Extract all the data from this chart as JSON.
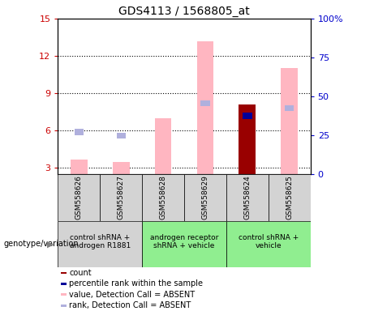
{
  "title": "GDS4113 / 1568805_at",
  "samples": [
    "GSM558626",
    "GSM558627",
    "GSM558628",
    "GSM558629",
    "GSM558624",
    "GSM558625"
  ],
  "ylim_left": [
    2.5,
    15
  ],
  "ylim_right": [
    0,
    100
  ],
  "yticks_left": [
    3,
    6,
    9,
    12,
    15
  ],
  "yticks_right": [
    0,
    25,
    50,
    75,
    100
  ],
  "ytick_labels_left": [
    "3",
    "6",
    "9",
    "12",
    "15"
  ],
  "ytick_labels_right": [
    "0",
    "25",
    "50",
    "75",
    "100%"
  ],
  "bars": {
    "GSM558626": {
      "pink_value": 3.7,
      "blue_rank": 5.9,
      "red_count": null,
      "dark_blue_rank": null
    },
    "GSM558627": {
      "pink_value": 3.5,
      "blue_rank": 5.6,
      "red_count": null,
      "dark_blue_rank": null
    },
    "GSM558628": {
      "pink_value": 7.0,
      "blue_rank": null,
      "red_count": null,
      "dark_blue_rank": null
    },
    "GSM558629": {
      "pink_value": 13.2,
      "blue_rank": 8.2,
      "red_count": null,
      "dark_blue_rank": null
    },
    "GSM558624": {
      "pink_value": null,
      "blue_rank": null,
      "red_count": 8.1,
      "dark_blue_rank": 7.2
    },
    "GSM558625": {
      "pink_value": 11.0,
      "blue_rank": 7.8,
      "red_count": null,
      "dark_blue_rank": null
    }
  },
  "groups": [
    {
      "start": 0,
      "end": 2,
      "label": "control shRNA +\nandrogen R1881",
      "color": "#d3d3d3"
    },
    {
      "start": 2,
      "end": 4,
      "label": "androgen receptor\nshRNA + vehicle",
      "color": "#90ee90"
    },
    {
      "start": 4,
      "end": 6,
      "label": "control shRNA +\nvehicle",
      "color": "#90ee90"
    }
  ],
  "colors": {
    "pink": "#ffb6c1",
    "light_blue": "#b0b0dd",
    "dark_red": "#990000",
    "dark_blue": "#000099",
    "left_axis_color": "#cc0000",
    "right_axis_color": "#0000cc",
    "sample_bg": "#d3d3d3",
    "group_bg_gray": "#d3d3d3",
    "group_bg_green": "#90ee90"
  },
  "legend_items": [
    {
      "label": "count",
      "color": "#990000"
    },
    {
      "label": "percentile rank within the sample",
      "color": "#000099"
    },
    {
      "label": "value, Detection Call = ABSENT",
      "color": "#ffb6c1"
    },
    {
      "label": "rank, Detection Call = ABSENT",
      "color": "#b0b0dd"
    }
  ]
}
